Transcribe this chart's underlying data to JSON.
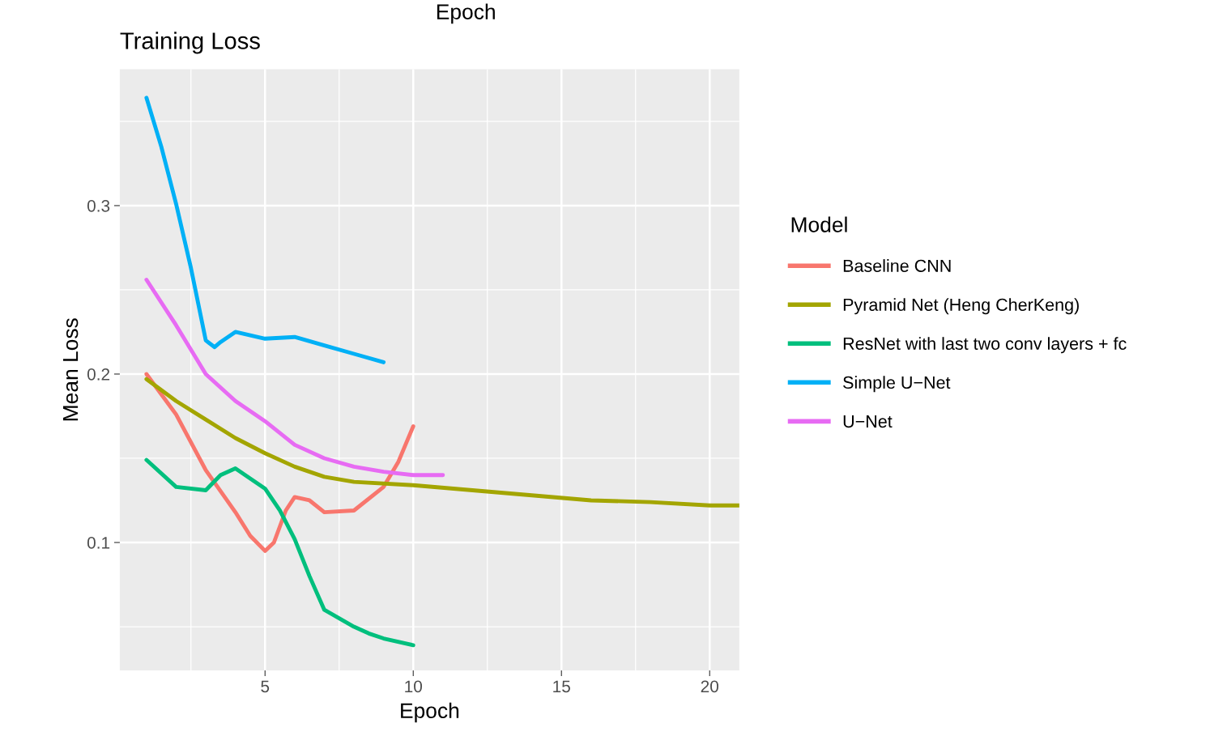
{
  "chart_data": {
    "type": "line",
    "title": "Training Loss",
    "xlabel": "Epoch",
    "ylabel": "Mean Loss",
    "legend_title": "Model",
    "legend": "right",
    "grid": true,
    "xlim": [
      0.1,
      21
    ],
    "ylim": [
      0.024,
      0.381
    ],
    "xticks": [
      5,
      10,
      15,
      20
    ],
    "yticks": [
      0.1,
      0.2,
      0.3
    ],
    "annotations": [
      "Epoch"
    ],
    "series": [
      {
        "name": "Baseline CNN",
        "color": "#f8766d",
        "x": [
          1,
          2,
          3,
          4,
          4.5,
          5,
          5.3,
          5.7,
          6,
          6.5,
          7,
          8,
          9,
          9.5,
          10
        ],
        "values": [
          0.2,
          0.176,
          0.143,
          0.118,
          0.104,
          0.095,
          0.1,
          0.119,
          0.127,
          0.125,
          0.118,
          0.119,
          0.133,
          0.148,
          0.169
        ]
      },
      {
        "name": "Pyramid Net (Heng CherKeng)",
        "color": "#a3a500",
        "x": [
          1,
          2,
          3,
          4,
          5,
          6,
          7,
          8,
          10,
          12,
          14,
          16,
          18,
          20,
          21
        ],
        "values": [
          0.197,
          0.184,
          0.173,
          0.162,
          0.153,
          0.145,
          0.139,
          0.136,
          0.134,
          0.131,
          0.128,
          0.125,
          0.124,
          0.122,
          0.122
        ]
      },
      {
        "name": "ResNet with last two conv layers + fc",
        "color": "#00bf7d",
        "x": [
          1,
          2,
          3,
          3.5,
          4,
          4.5,
          5,
          5.5,
          6,
          6.5,
          7,
          7.5,
          8,
          8.5,
          9,
          10
        ],
        "values": [
          0.149,
          0.133,
          0.131,
          0.14,
          0.144,
          0.138,
          0.132,
          0.119,
          0.102,
          0.08,
          0.06,
          0.055,
          0.05,
          0.046,
          0.043,
          0.039
        ]
      },
      {
        "name": "Simple U−Net",
        "color": "#00b0f6",
        "x": [
          1,
          1.5,
          2,
          2.5,
          3,
          3.3,
          3.5,
          4,
          5,
          6,
          7,
          8,
          9
        ],
        "values": [
          0.364,
          0.335,
          0.301,
          0.263,
          0.22,
          0.216,
          0.219,
          0.225,
          0.221,
          0.222,
          0.217,
          0.212,
          0.207
        ]
      },
      {
        "name": "U−Net",
        "color": "#e76bf3",
        "x": [
          1,
          2,
          3,
          4,
          5,
          6,
          7,
          8,
          9,
          10,
          11
        ],
        "values": [
          0.256,
          0.229,
          0.2,
          0.184,
          0.172,
          0.158,
          0.15,
          0.145,
          0.142,
          0.14,
          0.14
        ]
      }
    ]
  }
}
